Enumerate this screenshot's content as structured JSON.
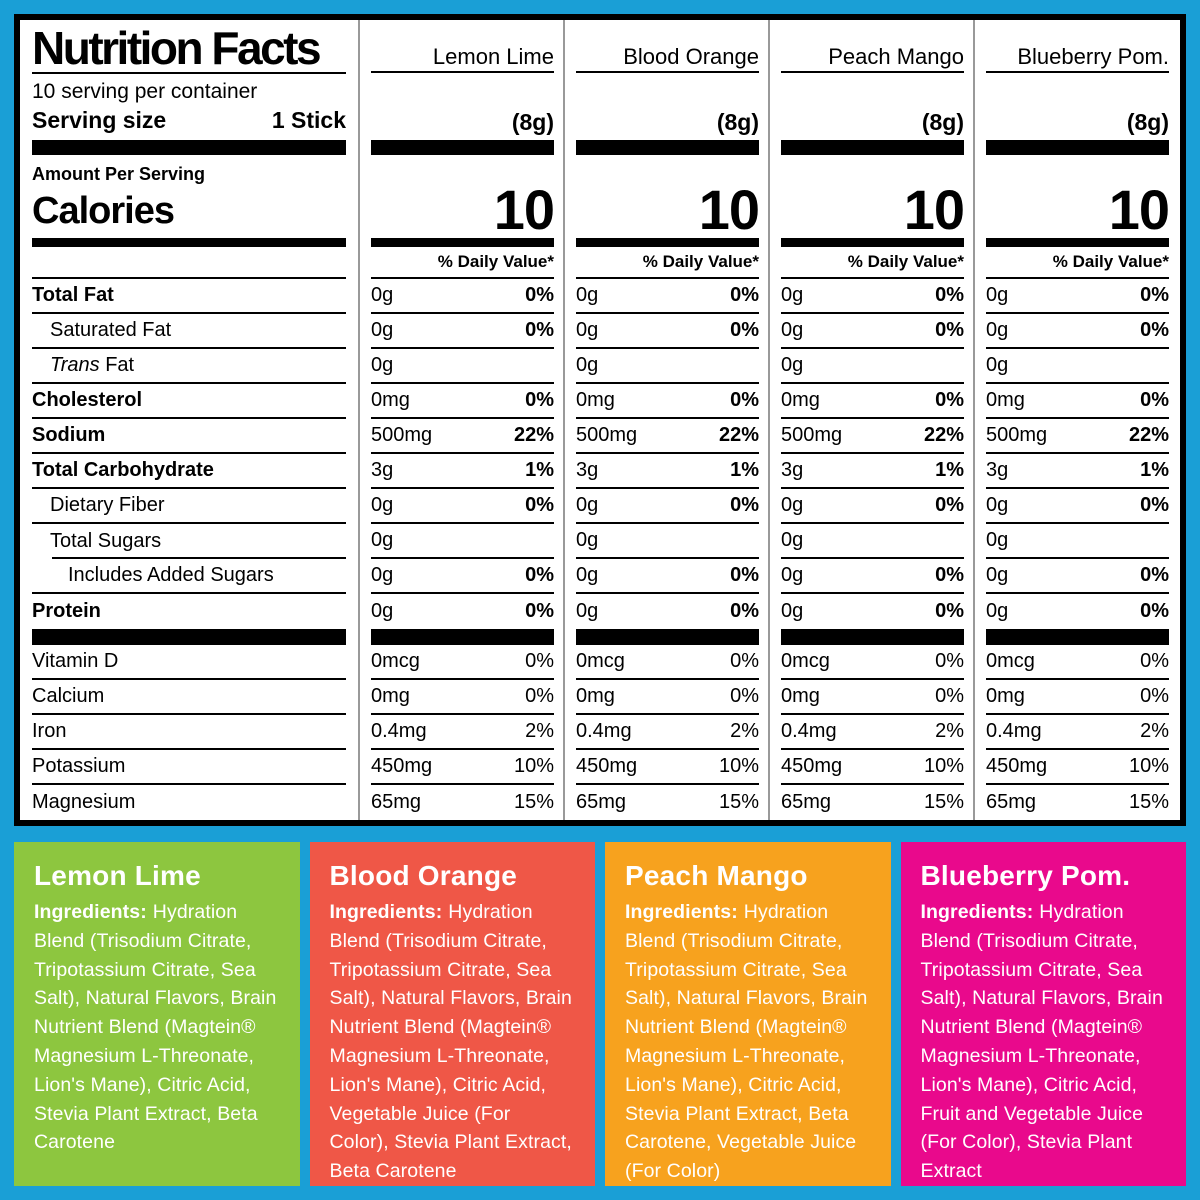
{
  "page": {
    "background_color": "#1A9FD6"
  },
  "nutrition_panel": {
    "title": "Nutrition Facts",
    "servings_per_container": "10 serving per container",
    "serving_size_label": "Serving size",
    "serving_size_value": "1 Stick",
    "amount_per_serving_label": "Amount Per Serving",
    "calories_label": "Calories",
    "daily_value_header": "% Daily Value*",
    "columns": [
      {
        "name": "Lemon Lime",
        "serving_weight": "(8g)",
        "calories": "10"
      },
      {
        "name": "Blood Orange",
        "serving_weight": "(8g)",
        "calories": "10"
      },
      {
        "name": "Peach Mango",
        "serving_weight": "(8g)",
        "calories": "10"
      },
      {
        "name": "Blueberry Pom.",
        "serving_weight": "(8g)",
        "calories": "10"
      }
    ],
    "nutrient_rows": [
      {
        "label": "Total Fat",
        "bold": true,
        "indent": 0,
        "dv_bold": true,
        "values": [
          {
            "amount": "0g",
            "dv": "0%"
          },
          {
            "amount": "0g",
            "dv": "0%"
          },
          {
            "amount": "0g",
            "dv": "0%"
          },
          {
            "amount": "0g",
            "dv": "0%"
          }
        ]
      },
      {
        "label": "Saturated Fat",
        "bold": false,
        "indent": 1,
        "dv_bold": true,
        "values": [
          {
            "amount": "0g",
            "dv": "0%"
          },
          {
            "amount": "0g",
            "dv": "0%"
          },
          {
            "amount": "0g",
            "dv": "0%"
          },
          {
            "amount": "0g",
            "dv": "0%"
          }
        ]
      },
      {
        "label": "Trans Fat",
        "bold": false,
        "indent": 1,
        "italic_first_word": true,
        "dv_bold": false,
        "values": [
          {
            "amount": "0g",
            "dv": ""
          },
          {
            "amount": "0g",
            "dv": ""
          },
          {
            "amount": "0g",
            "dv": ""
          },
          {
            "amount": "0g",
            "dv": ""
          }
        ]
      },
      {
        "label": "Cholesterol",
        "bold": true,
        "indent": 0,
        "dv_bold": true,
        "values": [
          {
            "amount": "0mg",
            "dv": "0%"
          },
          {
            "amount": "0mg",
            "dv": "0%"
          },
          {
            "amount": "0mg",
            "dv": "0%"
          },
          {
            "amount": "0mg",
            "dv": "0%"
          }
        ]
      },
      {
        "label": "Sodium",
        "bold": true,
        "indent": 0,
        "dv_bold": true,
        "values": [
          {
            "amount": "500mg",
            "dv": "22%"
          },
          {
            "amount": "500mg",
            "dv": "22%"
          },
          {
            "amount": "500mg",
            "dv": "22%"
          },
          {
            "amount": "500mg",
            "dv": "22%"
          }
        ]
      },
      {
        "label": "Total Carbohydrate",
        "bold": true,
        "indent": 0,
        "dv_bold": true,
        "values": [
          {
            "amount": "3g",
            "dv": "1%"
          },
          {
            "amount": "3g",
            "dv": "1%"
          },
          {
            "amount": "3g",
            "dv": "1%"
          },
          {
            "amount": "3g",
            "dv": "1%"
          }
        ]
      },
      {
        "label": "Dietary Fiber",
        "bold": false,
        "indent": 1,
        "dv_bold": true,
        "values": [
          {
            "amount": "0g",
            "dv": "0%"
          },
          {
            "amount": "0g",
            "dv": "0%"
          },
          {
            "amount": "0g",
            "dv": "0%"
          },
          {
            "amount": "0g",
            "dv": "0%"
          }
        ]
      },
      {
        "label": "Total Sugars",
        "bold": false,
        "indent": 1,
        "sep_indent_left": true,
        "dv_bold": false,
        "values": [
          {
            "amount": "0g",
            "dv": ""
          },
          {
            "amount": "0g",
            "dv": ""
          },
          {
            "amount": "0g",
            "dv": ""
          },
          {
            "amount": "0g",
            "dv": ""
          }
        ]
      },
      {
        "label": "Includes Added Sugars",
        "bold": false,
        "indent": 2,
        "dv_bold": true,
        "values": [
          {
            "amount": "0g",
            "dv": "0%"
          },
          {
            "amount": "0g",
            "dv": "0%"
          },
          {
            "amount": "0g",
            "dv": "0%"
          },
          {
            "amount": "0g",
            "dv": "0%"
          }
        ]
      },
      {
        "label": "Protein",
        "bold": true,
        "indent": 0,
        "no_separator": true,
        "dv_bold": true,
        "values": [
          {
            "amount": "0g",
            "dv": "0%"
          },
          {
            "amount": "0g",
            "dv": "0%"
          },
          {
            "amount": "0g",
            "dv": "0%"
          },
          {
            "amount": "0g",
            "dv": "0%"
          }
        ]
      }
    ],
    "micronutrient_rows": [
      {
        "label": "Vitamin D",
        "bold": false,
        "indent": 0,
        "dv_bold": false,
        "values": [
          {
            "amount": "0mcg",
            "dv": "0%"
          },
          {
            "amount": "0mcg",
            "dv": "0%"
          },
          {
            "amount": "0mcg",
            "dv": "0%"
          },
          {
            "amount": "0mcg",
            "dv": "0%"
          }
        ]
      },
      {
        "label": "Calcium",
        "bold": false,
        "indent": 0,
        "dv_bold": false,
        "values": [
          {
            "amount": "0mg",
            "dv": "0%"
          },
          {
            "amount": "0mg",
            "dv": "0%"
          },
          {
            "amount": "0mg",
            "dv": "0%"
          },
          {
            "amount": "0mg",
            "dv": "0%"
          }
        ]
      },
      {
        "label": "Iron",
        "bold": false,
        "indent": 0,
        "dv_bold": false,
        "values": [
          {
            "amount": "0.4mg",
            "dv": "2%"
          },
          {
            "amount": "0.4mg",
            "dv": "2%"
          },
          {
            "amount": "0.4mg",
            "dv": "2%"
          },
          {
            "amount": "0.4mg",
            "dv": "2%"
          }
        ]
      },
      {
        "label": "Potassium",
        "bold": false,
        "indent": 0,
        "dv_bold": false,
        "values": [
          {
            "amount": "450mg",
            "dv": "10%"
          },
          {
            "amount": "450mg",
            "dv": "10%"
          },
          {
            "amount": "450mg",
            "dv": "10%"
          },
          {
            "amount": "450mg",
            "dv": "10%"
          }
        ]
      },
      {
        "label": "Magnesium",
        "bold": false,
        "indent": 0,
        "no_separator": true,
        "dv_bold": false,
        "values": [
          {
            "amount": "65mg",
            "dv": "15%"
          },
          {
            "amount": "65mg",
            "dv": "15%"
          },
          {
            "amount": "65mg",
            "dv": "15%"
          },
          {
            "amount": "65mg",
            "dv": "15%"
          }
        ]
      }
    ]
  },
  "ingredient_boxes": [
    {
      "flavor": "Lemon Lime",
      "color": "#8DC63F",
      "ingredients_label": "Ingredients:",
      "ingredients_text": "Hydration Blend (Trisodium Citrate, Tripotassium Citrate, Sea Salt), Natural Flavors, Brain Nutrient Blend (Magtein® Magnesium L-Threonate, Lion's Mane), Citric Acid, Stevia Plant Extract, Beta Carotene"
    },
    {
      "flavor": "Blood Orange",
      "color": "#EF5747",
      "ingredients_label": "Ingredients:",
      "ingredients_text": "Hydration Blend (Trisodium Citrate, Tripotassium Citrate, Sea Salt), Natural Flavors, Brain Nutrient Blend (Magtein® Magnesium L-Threonate, Lion's Mane), Citric Acid, Vegetable Juice (For Color), Stevia Plant Extract, Beta Carotene"
    },
    {
      "flavor": "Peach Mango",
      "color": "#F7A21E",
      "ingredients_label": "Ingredients:",
      "ingredients_text": "Hydration Blend (Trisodium Citrate, Tripotassium Citrate, Sea Salt), Natural Flavors, Brain Nutrient Blend (Magtein® Magnesium L-Threonate, Lion's Mane), Citric Acid, Stevia Plant Extract, Beta Carotene, Vegetable Juice (For Color)"
    },
    {
      "flavor": "Blueberry Pom.",
      "color": "#E9098C",
      "ingredients_label": "Ingredients:",
      "ingredients_text": "Hydration Blend (Trisodium Citrate, Tripotassium Citrate, Sea Salt), Natural Flavors, Brain Nutrient Blend (Magtein® Magnesium L-Threonate, Lion's Mane), Citric Acid, Fruit and Vegetable Juice (For Color), Stevia Plant Extract"
    }
  ]
}
